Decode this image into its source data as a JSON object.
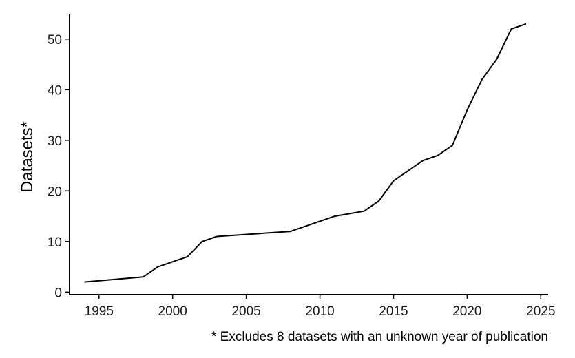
{
  "chart_data": {
    "type": "line",
    "title": "",
    "xlabel": "",
    "ylabel": "Datasets*",
    "caption": "* Excludes 8 datasets with an unknown year of publication",
    "xlim": [
      1993,
      2025.5
    ],
    "ylim": [
      -0.5,
      55
    ],
    "xticks": [
      1995,
      2000,
      2005,
      2010,
      2015,
      2020,
      2025
    ],
    "yticks": [
      0,
      10,
      20,
      30,
      40,
      50
    ],
    "grid": false,
    "series": [
      {
        "x": [
          1994,
          1998,
          1999,
          2001,
          2002,
          2003,
          2008,
          2011,
          2013,
          2014,
          2015,
          2017,
          2018,
          2019,
          2020,
          2021,
          2022,
          2023,
          2024
        ],
        "y": [
          2,
          3,
          5,
          7,
          10,
          11,
          12,
          15,
          16,
          18,
          22,
          26,
          27,
          29,
          36,
          42,
          46,
          52,
          53
        ]
      }
    ]
  }
}
